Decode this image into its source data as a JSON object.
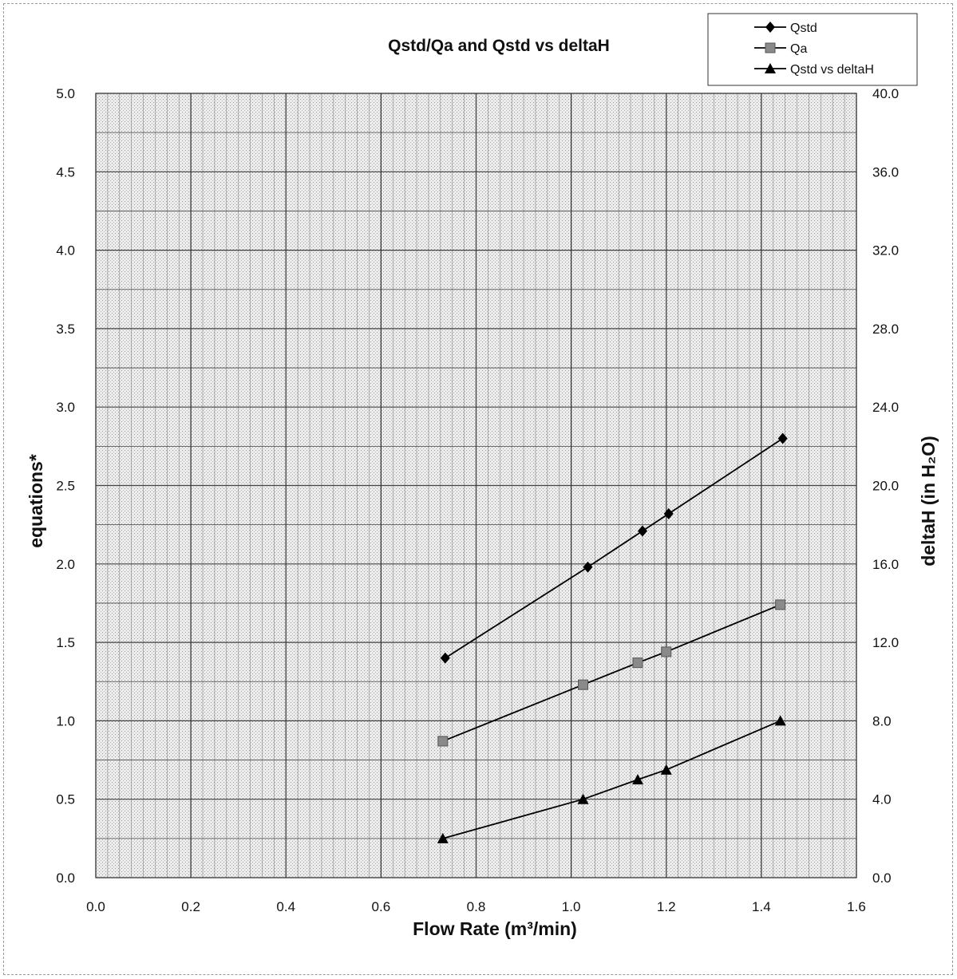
{
  "chart_data": {
    "type": "line",
    "title": "Qstd/Qa and Qstd vs deltaH",
    "xlabel": "Flow Rate (m³/min)",
    "ylabel": "equations*",
    "y2label": "deltaH (in H₂O)",
    "xlim": [
      0.0,
      1.6
    ],
    "ylim": [
      0.0,
      5.0
    ],
    "y2lim": [
      0.0,
      40.0
    ],
    "x_ticks": [
      "0.0",
      "0.2",
      "0.4",
      "0.6",
      "0.8",
      "1.0",
      "1.2",
      "1.4",
      "1.6"
    ],
    "y_ticks": [
      "0.0",
      "0.5",
      "1.0",
      "1.5",
      "2.0",
      "2.5",
      "3.0",
      "3.5",
      "4.0",
      "4.5",
      "5.0"
    ],
    "y2_ticks": [
      "0.0",
      "4.0",
      "8.0",
      "12.0",
      "16.0",
      "20.0",
      "24.0",
      "28.0",
      "32.0",
      "36.0",
      "40.0"
    ],
    "grid": true,
    "legend_position": "top-right",
    "series": [
      {
        "name": "Qstd",
        "marker": "diamond",
        "axis": "left",
        "x": [
          0.735,
          1.035,
          1.15,
          1.205,
          1.445
        ],
        "y": [
          1.4,
          1.98,
          2.21,
          2.32,
          2.8
        ]
      },
      {
        "name": "Qa",
        "marker": "square",
        "axis": "left",
        "x": [
          0.73,
          1.025,
          1.14,
          1.2,
          1.44
        ],
        "y": [
          0.87,
          1.23,
          1.37,
          1.44,
          1.74
        ]
      },
      {
        "name": "Qstd vs deltaH",
        "marker": "triangle",
        "axis": "right",
        "x": [
          0.73,
          1.025,
          1.14,
          1.2,
          1.44
        ],
        "y": [
          2.0,
          4.0,
          5.0,
          5.5,
          8.0
        ]
      }
    ],
    "colors": {
      "line": "#000000",
      "qa_marker": "#8a8a8a",
      "plot_bg": "#e4e4e4",
      "grid": "#333333"
    }
  }
}
